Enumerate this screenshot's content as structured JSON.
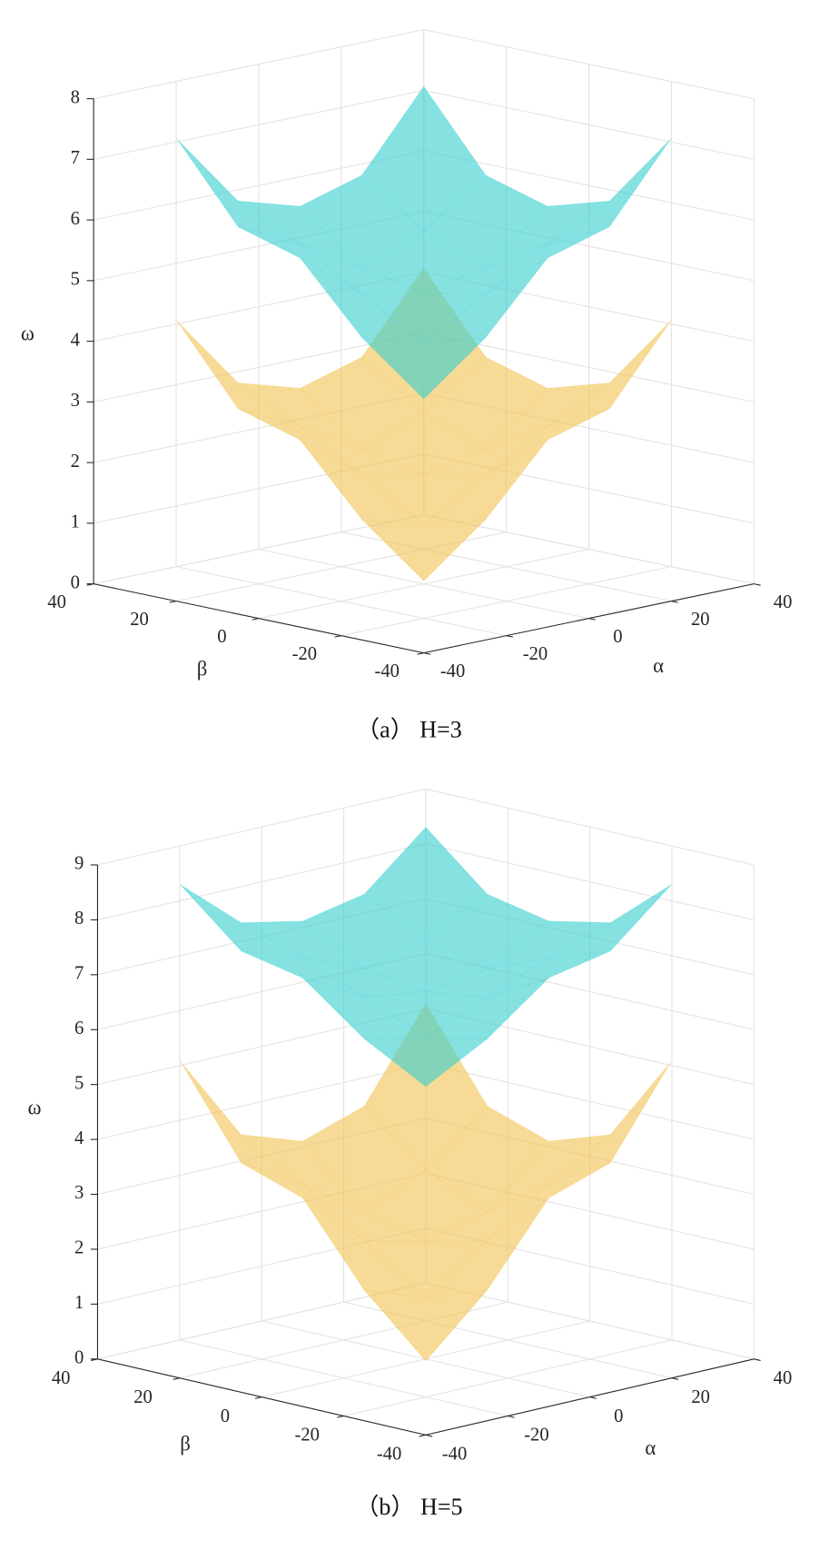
{
  "chart_data": [
    {
      "type": "surface",
      "caption": "（a） H=3",
      "xlabel": "α",
      "ylabel": "β",
      "zlabel": "ω",
      "x": [
        -30,
        -15,
        0,
        15,
        30
      ],
      "y": [
        -30,
        -15,
        0,
        15,
        30
      ],
      "xlim": [
        -40,
        40
      ],
      "ylim": [
        -40,
        40
      ],
      "zlim": [
        0,
        8
      ],
      "xticks": [
        -40,
        -20,
        0,
        20,
        40
      ],
      "yticks": [
        -40,
        -20,
        0,
        20,
        40
      ],
      "zticks": [
        0,
        1,
        2,
        3,
        4,
        5,
        6,
        7,
        8
      ],
      "grid": true,
      "series": [
        {
          "color": "#f0c24e",
          "opacity": 0.6,
          "values": [
            [
              0.9,
              1.7,
              2.8,
              3.1,
              4.35
            ],
            [
              1.7,
              1.4,
              2.0,
              2.6,
              3.1
            ],
            [
              2.8,
              2.0,
              1.8,
              2.0,
              2.8
            ],
            [
              3.1,
              2.6,
              2.0,
              2.4,
              3.1
            ],
            [
              4.35,
              3.1,
              2.8,
              3.1,
              4.35
            ]
          ]
        },
        {
          "color": "#3ccfcf",
          "opacity": 0.62,
          "values": [
            [
              3.9,
              4.7,
              5.8,
              6.1,
              7.35
            ],
            [
              4.7,
              4.4,
              5.0,
              5.6,
              6.1
            ],
            [
              5.8,
              5.0,
              4.8,
              5.0,
              5.8
            ],
            [
              6.1,
              5.6,
              5.0,
              5.4,
              6.1
            ],
            [
              7.35,
              6.1,
              5.8,
              6.1,
              7.35
            ]
          ]
        }
      ]
    },
    {
      "type": "surface",
      "caption": "（b） H=5",
      "xlabel": "α",
      "ylabel": "β",
      "zlabel": "ω",
      "x": [
        -30,
        -15,
        0,
        15,
        30
      ],
      "y": [
        -30,
        -15,
        0,
        15,
        30
      ],
      "xlim": [
        -40,
        40
      ],
      "ylim": [
        -40,
        40
      ],
      "zlim": [
        0,
        9
      ],
      "xticks": [
        -40,
        -20,
        0,
        20,
        40
      ],
      "yticks": [
        -40,
        -20,
        0,
        20,
        40
      ],
      "zticks": [
        0,
        1,
        2,
        3,
        4,
        5,
        6,
        7,
        8,
        9
      ],
      "grid": true,
      "series": [
        {
          "color": "#f0c24e",
          "opacity": 0.6,
          "values": [
            [
              1.0,
              2.03,
              3.45,
              3.83,
              5.44
            ],
            [
              2.03,
              1.64,
              2.42,
              3.19,
              3.83
            ],
            [
              3.45,
              2.42,
              2.16,
              2.42,
              3.45
            ],
            [
              3.83,
              3.19,
              2.42,
              2.93,
              3.83
            ],
            [
              5.44,
              3.83,
              3.45,
              3.83,
              5.44
            ]
          ]
        },
        {
          "color": "#3ccfcf",
          "opacity": 0.62,
          "values": [
            [
              6.0,
              6.61,
              7.46,
              7.69,
              8.65
            ],
            [
              6.61,
              6.38,
              6.85,
              7.31,
              7.69
            ],
            [
              7.46,
              6.85,
              6.69,
              6.85,
              7.46
            ],
            [
              7.69,
              7.31,
              6.85,
              7.15,
              7.69
            ],
            [
              8.65,
              7.69,
              7.46,
              7.69,
              8.65
            ]
          ]
        }
      ]
    }
  ]
}
